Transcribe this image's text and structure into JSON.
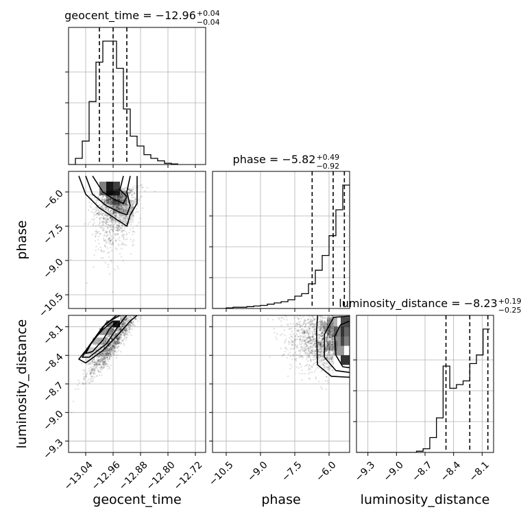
{
  "chart_data": {
    "type": "scatter",
    "subtype": "corner-plot",
    "parameters": [
      "geocent_time",
      "phase",
      "luminosity_distance"
    ],
    "axis_labels": {
      "geocent_time": "geocent_time",
      "phase": "phase",
      "luminosity_distance": "luminosity_distance"
    },
    "ranges": {
      "geocent_time": [
        -13.09,
        -12.69
      ],
      "phase": [
        -11.1,
        -5.1
      ],
      "luminosity_distance": [
        -9.42,
        -7.98
      ]
    },
    "ticks": {
      "geocent_time": [
        -13.04,
        -12.96,
        -12.88,
        -12.8,
        -12.72
      ],
      "phase": [
        -10.5,
        -9.0,
        -7.5,
        -6.0
      ],
      "luminosity_distance": [
        -9.3,
        -9.0,
        -8.7,
        -8.4,
        -8.1
      ]
    },
    "tick_labels": {
      "geocent_time": [
        "−13.04",
        "−12.96",
        "−12.88",
        "−12.80",
        "−12.72"
      ],
      "phase": [
        "−10.5",
        "−9.0",
        "−7.5",
        "−6.0"
      ],
      "luminosity_distance": [
        "−9.3",
        "−9.0",
        "−8.7",
        "−8.4",
        "−8.1"
      ]
    },
    "titles": {
      "geocent_time": {
        "prefix": "geocent_time = −12.96",
        "plus": "+0.04",
        "minus": "−0.04"
      },
      "phase": {
        "prefix": "phase = −5.82",
        "plus": "+0.49",
        "minus": "−0.92"
      },
      "luminosity_distance": {
        "prefix": "luminosity_distance = −8.23",
        "plus": "+0.19",
        "minus": "−0.25"
      }
    },
    "quantiles": {
      "geocent_time": [
        -13.0,
        -12.96,
        -12.92
      ],
      "phase": [
        -6.74,
        -5.82,
        -5.33
      ],
      "luminosity_distance": [
        -8.48,
        -8.23,
        -8.04
      ]
    },
    "histograms": {
      "geocent_time": {
        "bin_edges": [
          -13.09,
          -13.07,
          -13.05,
          -13.03,
          -13.01,
          -12.99,
          -12.97,
          -12.95,
          -12.93,
          -12.91,
          -12.89,
          -12.87,
          -12.85,
          -12.83,
          -12.81,
          -12.79,
          -12.77
        ],
        "counts": [
          0,
          0.05,
          0.19,
          0.51,
          0.83,
          1.0,
          1.0,
          0.78,
          0.45,
          0.23,
          0.15,
          0.08,
          0.05,
          0.03,
          0.01,
          0.005
        ]
      },
      "phase": {
        "bin_edges": [
          -11.1,
          -10.8,
          -10.5,
          -10.2,
          -9.9,
          -9.6,
          -9.3,
          -9.0,
          -8.7,
          -8.4,
          -8.1,
          -7.8,
          -7.5,
          -7.2,
          -6.9,
          -6.6,
          -6.3,
          -6.0,
          -5.7,
          -5.4,
          -5.1
        ],
        "counts": [
          0,
          0,
          0.005,
          0.01,
          0.01,
          0.015,
          0.02,
          0.025,
          0.035,
          0.045,
          0.055,
          0.07,
          0.1,
          0.12,
          0.2,
          0.31,
          0.43,
          0.59,
          0.8,
          1.0
        ]
      },
      "luminosity_distance": {
        "bin_edges": [
          -9.42,
          -9.35,
          -9.28,
          -9.21,
          -9.14,
          -9.07,
          -9.0,
          -8.93,
          -8.86,
          -8.79,
          -8.72,
          -8.65,
          -8.58,
          -8.51,
          -8.44,
          -8.37,
          -8.3,
          -8.23,
          -8.16,
          -8.09,
          -8.02
        ],
        "counts": [
          0,
          0,
          0,
          0,
          0,
          0,
          0,
          0,
          0,
          0.01,
          0.03,
          0.12,
          0.28,
          0.7,
          0.52,
          0.55,
          0.58,
          0.72,
          0.79,
          1.0
        ]
      }
    },
    "grid": true,
    "legend": "none"
  }
}
